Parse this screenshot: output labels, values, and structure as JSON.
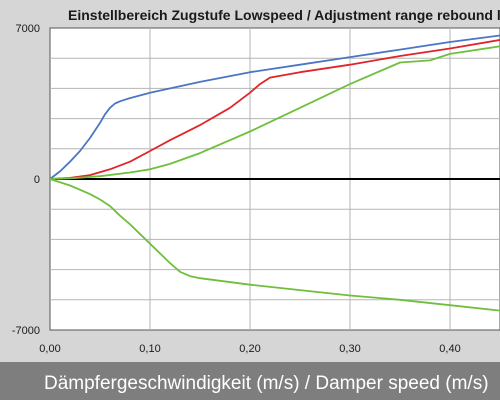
{
  "chart_data": {
    "type": "line",
    "title": "Einstellbereich Zugstufe Lowspeed / Adjustment range rebound lowspeed",
    "xlabel": "Dämpfergeschwindigkeit (m/s) / Damper speed (m/s)",
    "ylabel": "",
    "xlim": [
      0,
      0.45
    ],
    "ylim": [
      -7000,
      7000
    ],
    "x_ticks": [
      "0,00",
      "0,10",
      "0,20",
      "0,30",
      "0,40"
    ],
    "y_ticks": [
      "7000",
      "0",
      "-7000"
    ],
    "grid": true,
    "series": [
      {
        "color": "#4a76c4",
        "x": [
          0,
          0.01,
          0.02,
          0.03,
          0.04,
          0.05,
          0.055,
          0.06,
          0.065,
          0.07,
          0.08,
          0.1,
          0.15,
          0.2,
          0.25,
          0.3,
          0.35,
          0.4,
          0.45
        ],
        "y": [
          0,
          350,
          800,
          1300,
          1900,
          2600,
          3000,
          3300,
          3500,
          3600,
          3750,
          4000,
          4500,
          4950,
          5300,
          5650,
          6000,
          6350,
          6650
        ]
      },
      {
        "color": "#e0242a",
        "x": [
          0,
          0.02,
          0.04,
          0.06,
          0.08,
          0.1,
          0.12,
          0.15,
          0.18,
          0.2,
          0.21,
          0.22,
          0.25,
          0.3,
          0.35,
          0.4,
          0.45
        ],
        "y": [
          0,
          50,
          180,
          450,
          800,
          1300,
          1800,
          2500,
          3300,
          4000,
          4400,
          4700,
          4950,
          5300,
          5700,
          6050,
          6450
        ]
      },
      {
        "color": "#6fbf3d",
        "x": [
          0,
          0.02,
          0.05,
          0.08,
          0.1,
          0.12,
          0.15,
          0.2,
          0.25,
          0.3,
          0.35,
          0.38,
          0.4,
          0.45
        ],
        "y": [
          0,
          30,
          130,
          300,
          450,
          700,
          1200,
          2200,
          3300,
          4400,
          5400,
          5500,
          5800,
          6150
        ]
      },
      {
        "color": "#6fbf3d",
        "x": [
          0,
          0.02,
          0.04,
          0.05,
          0.06,
          0.07,
          0.08,
          0.1,
          0.12,
          0.13,
          0.14,
          0.15,
          0.2,
          0.25,
          0.3,
          0.35,
          0.4,
          0.45
        ],
        "y": [
          0,
          -300,
          -700,
          -950,
          -1250,
          -1700,
          -2100,
          -3000,
          -3900,
          -4300,
          -4500,
          -4600,
          -4900,
          -5150,
          -5400,
          -5600,
          -5850,
          -6100
        ]
      }
    ]
  }
}
